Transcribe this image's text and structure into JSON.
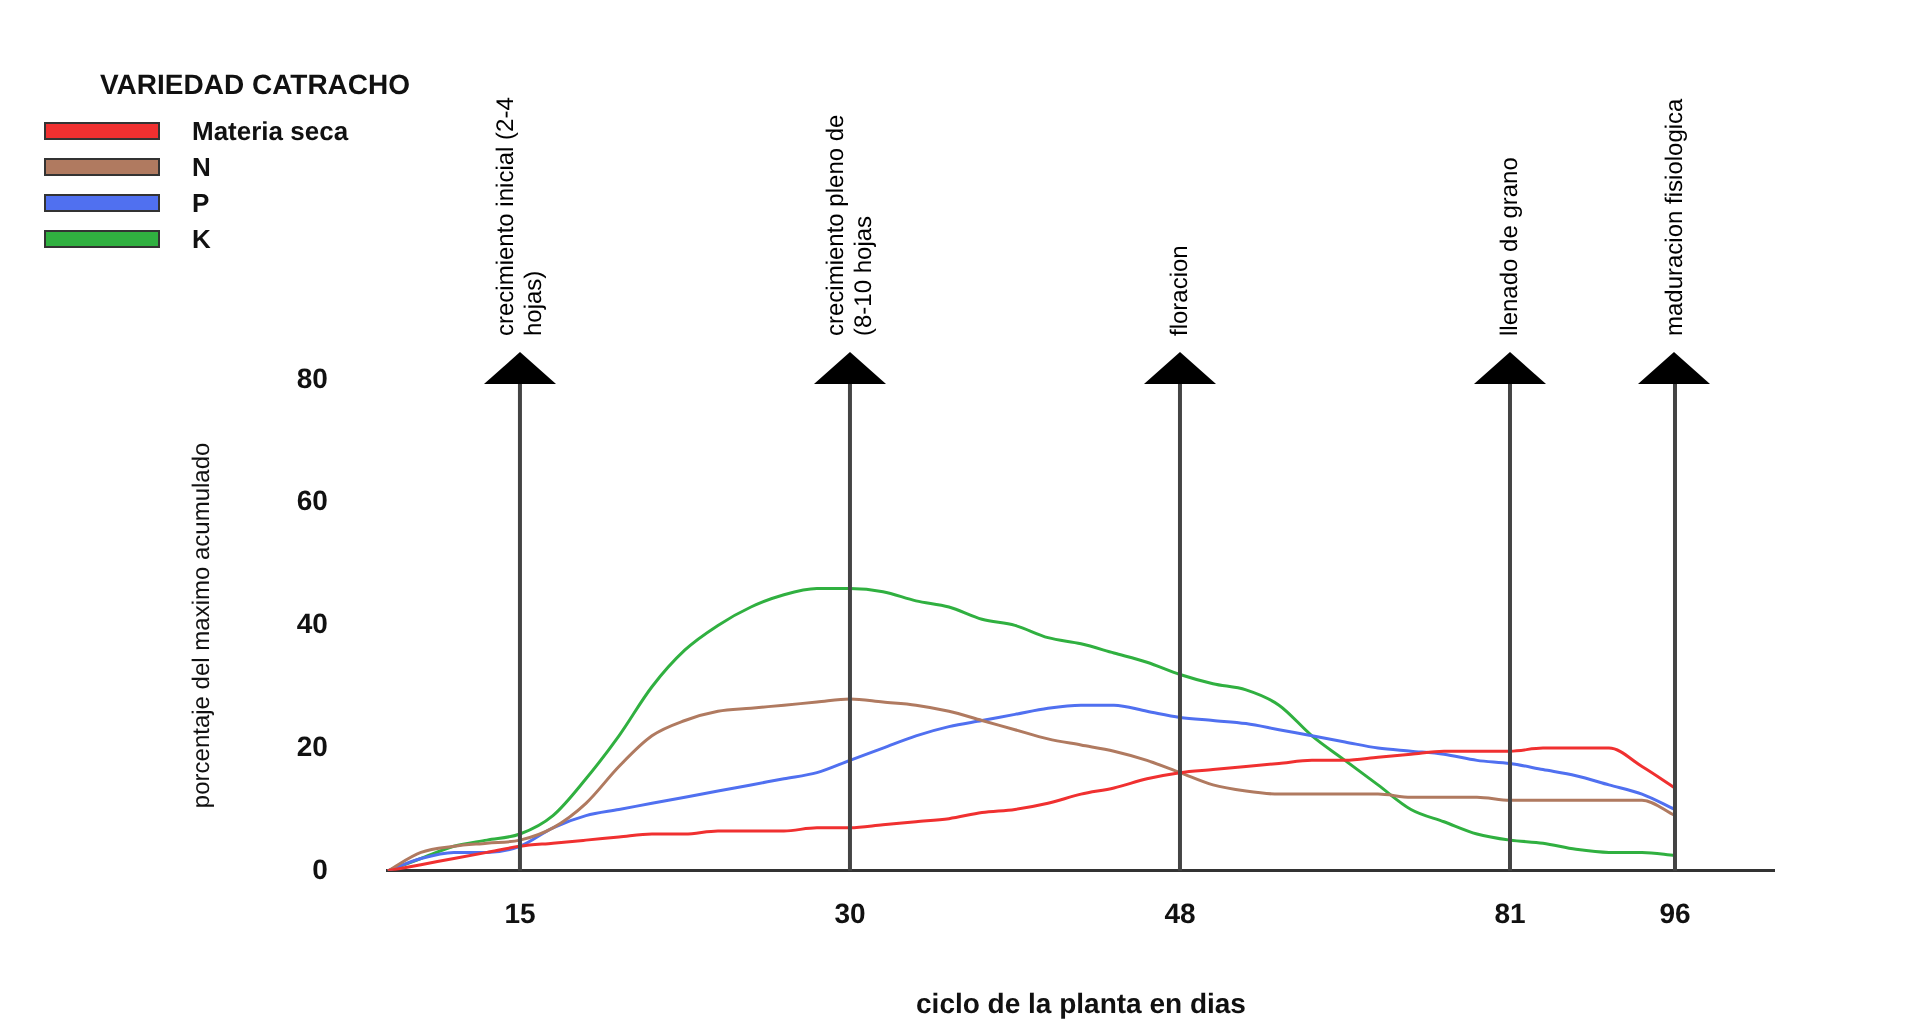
{
  "chart_data": {
    "type": "line",
    "xlabel": "ciclo de la planta en dias",
    "ylabel": "porcentaje del maximo acumulado",
    "legend_title": "VARIEDAD  CATRACHO",
    "legend": "top left",
    "grid": false,
    "marker": "none",
    "line_style": "solid",
    "categories": [
      null,
      null,
      null,
      null,
      "15",
      null,
      null,
      null,
      null,
      null,
      null,
      null,
      null,
      null,
      "30",
      null,
      null,
      null,
      null,
      null,
      null,
      null,
      null,
      null,
      "48",
      null,
      null,
      null,
      null,
      null,
      null,
      null,
      null,
      null,
      "81",
      null,
      null,
      null,
      null,
      "96"
    ],
    "ylim": [
      0,
      80
    ],
    "yticks": [
      0,
      20,
      40,
      60,
      80
    ],
    "series": [
      {
        "name": "Materia seca",
        "color": "#f03030",
        "values": [
          0,
          1,
          2,
          3,
          4,
          4.5,
          5,
          5.5,
          6,
          6,
          6.5,
          6.5,
          6.5,
          7,
          7,
          7.5,
          8,
          8.5,
          9.5,
          10,
          11,
          12.5,
          13.5,
          15,
          16,
          16.5,
          17,
          17.5,
          18,
          18,
          18.5,
          19,
          19.5,
          19.5,
          19.5,
          20,
          20,
          20,
          17,
          13.5
        ]
      },
      {
        "name": "N",
        "color": "#b07a60",
        "values": [
          0,
          3,
          4,
          4.5,
          5,
          7,
          11,
          17,
          22,
          24.5,
          26,
          26.5,
          27,
          27.5,
          28,
          27.5,
          27,
          26,
          24.5,
          23,
          21.5,
          20.5,
          19.5,
          18,
          16,
          14,
          13,
          12.5,
          12.5,
          12.5,
          12.5,
          12,
          12,
          12,
          11.5,
          11.5,
          11.5,
          11.5,
          11.5,
          9
        ]
      },
      {
        "name": "P",
        "color": "#5070f0",
        "values": [
          0,
          2,
          3,
          3,
          4,
          7,
          9,
          10,
          11,
          12,
          13,
          14,
          15,
          16,
          18,
          20,
          22,
          23.5,
          24.5,
          25.5,
          26.5,
          27,
          27,
          26,
          25,
          24.5,
          24,
          23,
          22,
          21,
          20,
          19.5,
          19,
          18,
          17.5,
          16.5,
          15.5,
          14,
          12.5,
          10
        ]
      },
      {
        "name": "K",
        "color": "#30b040",
        "values": [
          0,
          2,
          4,
          5,
          6,
          9,
          15,
          22,
          30,
          36,
          40,
          43,
          45,
          46,
          46,
          45.5,
          44,
          43,
          41,
          40,
          38,
          37,
          35.5,
          34,
          32,
          30.5,
          29.5,
          27,
          22,
          18,
          14,
          10,
          8,
          6,
          5,
          4.5,
          3.5,
          3,
          3,
          2.5
        ]
      }
    ],
    "ref_lines": [
      {
        "axis": "x",
        "value": "15",
        "label": "crecimiento inicial (2-4 hojas)",
        "color": "#444444"
      },
      {
        "axis": "x",
        "value": "30",
        "label": "crecimiento pleno de (8-10 hojas",
        "color": "#444444"
      },
      {
        "axis": "x",
        "value": "48",
        "label": "floracion",
        "color": "#444444"
      },
      {
        "axis": "x",
        "value": "81",
        "label": "llenado de grano",
        "color": "#444444"
      },
      {
        "axis": "x",
        "value": "96",
        "label": "maduracion fisiologica",
        "color": "#444444"
      }
    ]
  }
}
